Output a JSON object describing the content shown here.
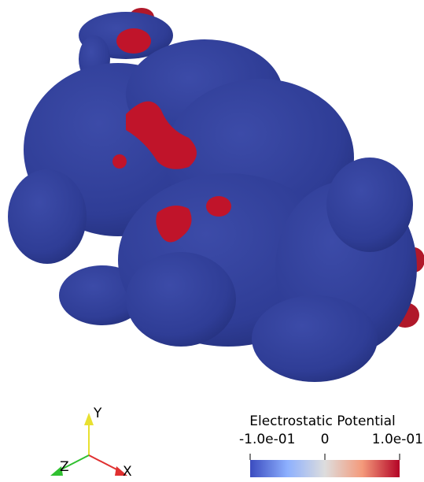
{
  "colorbar": {
    "title": "Electrostatic Potential",
    "range": [
      -0.1,
      0.1
    ],
    "ticks": [
      {
        "value": -0.1,
        "label": "-1.0e-01"
      },
      {
        "value": 0,
        "label": "0"
      },
      {
        "value": 0.1,
        "label": "1.0e-01"
      }
    ]
  },
  "axes_triad": {
    "x": "X",
    "y": "Y",
    "z": "Z"
  }
}
